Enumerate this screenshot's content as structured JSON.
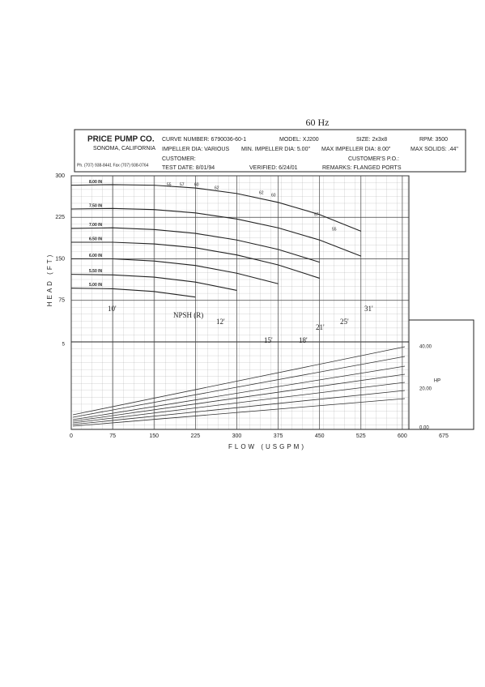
{
  "header": {
    "freq": "60 Hz",
    "company": "PRICE PUMP CO.",
    "city": "SONOMA, CALIFORNIA",
    "phone": "Ph. (707) 938-8441 Fax (707) 938-0764",
    "curve": "CURVE NUMBER: 6790036-60-1",
    "model": "MODEL: XJ200",
    "size": "SIZE: 2x3x8",
    "rpm": "RPM: 3500",
    "impeller": "IMPELLER DIA: VARIOUS",
    "min_dia": "MIN. IMPELLER DIA: 5.00\"",
    "max_dia": "MAX IMPELLER DIA: 8.00\"",
    "solids": "MAX SOLIDS: .44\"",
    "customer": "CUSTOMER:",
    "po": "CUSTOMER'S P.O.:",
    "test_date": "TEST DATE: 8/01/94",
    "verified": "VERIFIED: 6/24/01",
    "remarks": "REMARKS: FLANGED PORTS"
  },
  "chart_data": {
    "type": "line",
    "x_label": "FLOW (USGPM)",
    "y_label": "HEAD (FT)",
    "x": [
      0,
      75,
      150,
      225,
      300,
      375,
      450,
      525
    ],
    "series": [
      {
        "name": "8.00 IN",
        "color": "#222",
        "values": [
          283,
          284,
          283,
          278,
          268,
          252,
          230,
          200
        ]
      },
      {
        "name": "7.50 IN",
        "color": "#222",
        "values": [
          240,
          241,
          239,
          233,
          222,
          206,
          184,
          155
        ]
      },
      {
        "name": "7.00 IN",
        "color": "#222",
        "values": [
          205,
          206,
          203,
          196,
          184,
          167,
          144,
          null
        ]
      },
      {
        "name": "6.50 IN",
        "color": "#222",
        "values": [
          180,
          180,
          177,
          170,
          157,
          139,
          115,
          null
        ]
      },
      {
        "name": "6.00 IN",
        "color": "#222",
        "values": [
          150,
          150,
          146,
          138,
          124,
          105,
          null,
          null
        ]
      },
      {
        "name": "5.50 IN",
        "color": "#222",
        "values": [
          122,
          121,
          117,
          108,
          93,
          null,
          null,
          null
        ]
      },
      {
        "name": "5.00 IN",
        "color": "#222",
        "values": [
          97,
          96,
          91,
          81,
          null,
          null,
          null,
          null
        ]
      }
    ],
    "xlim": [
      0,
      675
    ],
    "xticks": [
      0,
      75,
      150,
      225,
      300,
      375,
      450,
      525,
      600,
      675
    ],
    "ylim": [
      0,
      300
    ],
    "yticks": [
      75,
      150,
      225,
      300
    ],
    "grid": true,
    "annotations": [
      "10'",
      "12'",
      "15'",
      "18'",
      "21'",
      "25'",
      "31'",
      "NPSH (R)",
      "55",
      "57",
      "60",
      "62",
      "62",
      "60",
      "57",
      "55"
    ],
    "lower_labels": [
      "5",
      "40.00",
      "HP",
      "20.00",
      "0.00"
    ]
  }
}
